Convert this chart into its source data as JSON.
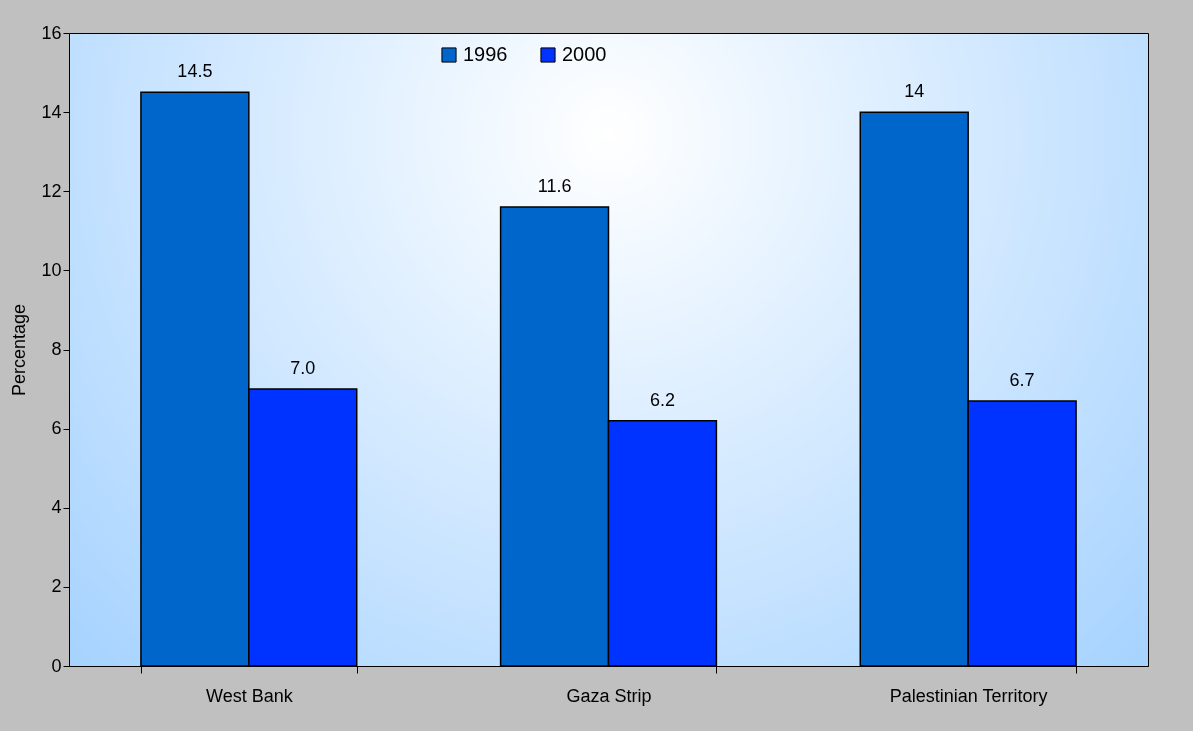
{
  "chart_data": {
    "type": "bar",
    "ylabel": "Percentage",
    "categories": [
      "West Bank",
      "Gaza Strip",
      "Palestinian Territory"
    ],
    "series": [
      {
        "name": "1996",
        "color": "#0066cc",
        "values": [
          14.5,
          11.6,
          14
        ],
        "value_labels": [
          "14.5",
          "11.6",
          "14"
        ]
      },
      {
        "name": "2000",
        "color": "#0033ff",
        "values": [
          7.0,
          6.2,
          6.7
        ],
        "value_labels": [
          "7.0",
          "6.2",
          "6.7"
        ]
      }
    ],
    "ylim": [
      0,
      16
    ],
    "yticks": [
      0,
      2,
      4,
      6,
      8,
      10,
      12,
      14,
      16
    ],
    "legend": "top"
  }
}
